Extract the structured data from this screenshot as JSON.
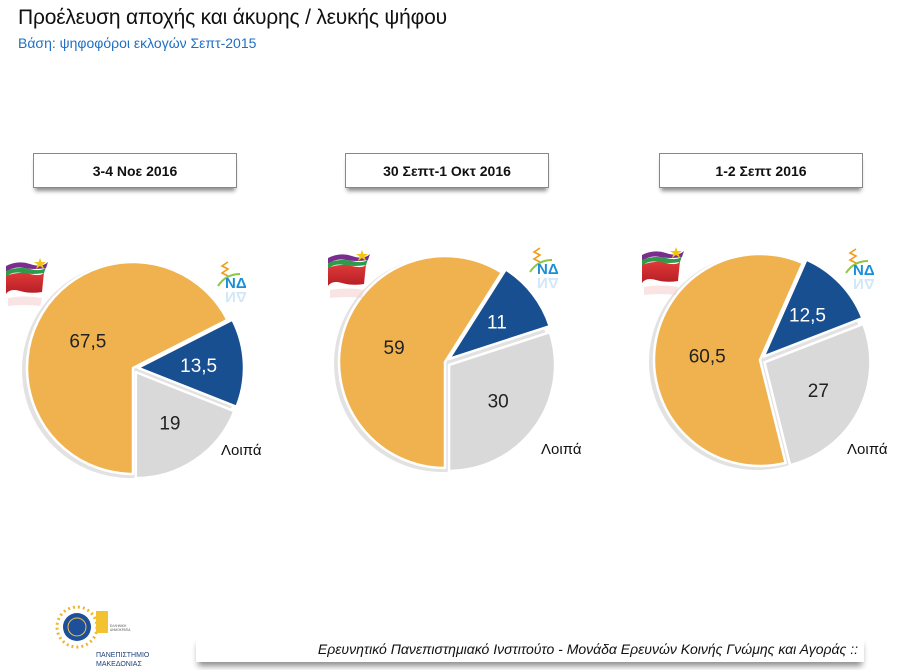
{
  "header": {
    "title": "Προέλευση αποχής και άκυρης / λευκής ψήφου",
    "subtitle": "Βάση: ψηφοφόροι εκλογών Σεπτ-2015"
  },
  "legend": {
    "others_label": "Λοιπά",
    "nd_logo_text": "ΝΔ"
  },
  "colors": {
    "syriza": "#efb24f",
    "nd": "#174f91",
    "others": "#d9d9d9",
    "subtitle": "#1f6fc4"
  },
  "chart_data": [
    {
      "type": "pie",
      "title": "3-4 Νοε 2016",
      "categories": [
        "ΣΥΡΙΖΑ",
        "ΝΔ",
        "Λοιπά"
      ],
      "values": [
        67.5,
        13.5,
        19
      ],
      "labels": [
        "67,5",
        "13,5",
        "19"
      ]
    },
    {
      "type": "pie",
      "title": "30 Σεπτ-1 Οκτ 2016",
      "categories": [
        "ΣΥΡΙΖΑ",
        "ΝΔ",
        "Λοιπά"
      ],
      "values": [
        59,
        11,
        30
      ],
      "labels": [
        "59",
        "11",
        "30"
      ]
    },
    {
      "type": "pie",
      "title": "1-2 Σεπτ 2016",
      "categories": [
        "ΣΥΡΙΖΑ",
        "ΝΔ",
        "Λοιπά"
      ],
      "values": [
        60.5,
        12.5,
        27
      ],
      "labels": [
        "60,5",
        "12,5",
        "27"
      ]
    }
  ],
  "footer": {
    "text": "Ερευνητικό Πανεπιστημιακό Ινστιτούτο - Μονάδα Ερευνών Κοινής Γνώμης και Αγοράς ::",
    "logo_lines": [
      "ΠΑΝΕΠΙΣΤΗΜΙΟ",
      "ΜΑΚΕΔΟΝΙΑΣ"
    ],
    "logo_small": [
      "ΕΛΛΗΝΙΚΗ",
      "ΔΗΜΟΚΡΑΤΙΑ"
    ]
  }
}
